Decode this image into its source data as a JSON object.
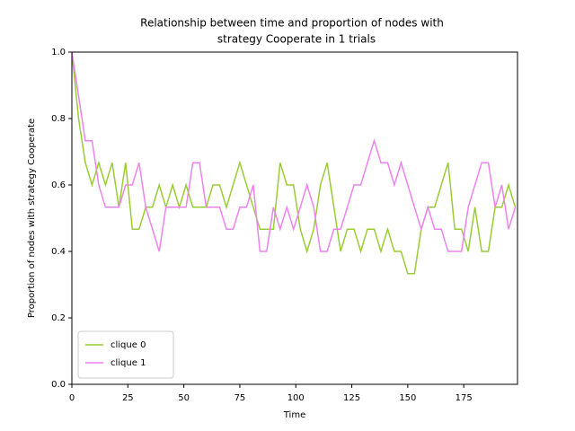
{
  "chart_data": {
    "type": "line",
    "title": [
      "Relationship between time and proportion of nodes with",
      "strategy Cooperate in 1 trials"
    ],
    "x_label": "Time",
    "y_label": "Proportion of nodes with strategy Cooperate",
    "x": [
      0,
      3,
      6,
      9,
      12,
      15,
      18,
      21,
      24,
      27,
      30,
      33,
      36,
      39,
      42,
      45,
      48,
      51,
      54,
      57,
      60,
      63,
      66,
      69,
      72,
      75,
      78,
      81,
      84,
      87,
      90,
      93,
      96,
      99,
      102,
      105,
      108,
      111,
      114,
      117,
      120,
      123,
      126,
      129,
      132,
      135,
      138,
      141,
      144,
      147,
      150,
      153,
      156,
      159,
      162,
      165,
      168,
      171,
      174,
      177,
      180,
      183,
      186,
      189,
      192,
      195,
      198
    ],
    "series": [
      {
        "name": "clique 0",
        "color": "#9acd32",
        "values": [
          1.0,
          0.8,
          0.667,
          0.6,
          0.667,
          0.6,
          0.667,
          0.533,
          0.667,
          0.467,
          0.467,
          0.533,
          0.533,
          0.6,
          0.533,
          0.6,
          0.533,
          0.6,
          0.533,
          0.533,
          0.533,
          0.6,
          0.6,
          0.533,
          0.6,
          0.667,
          0.6,
          0.533,
          0.467,
          0.467,
          0.467,
          0.667,
          0.6,
          0.6,
          0.467,
          0.4,
          0.467,
          0.6,
          0.667,
          0.533,
          0.4,
          0.467,
          0.467,
          0.4,
          0.467,
          0.467,
          0.4,
          0.467,
          0.4,
          0.4,
          0.333,
          0.333,
          0.467,
          0.533,
          0.533,
          0.6,
          0.667,
          0.467,
          0.467,
          0.4,
          0.533,
          0.4,
          0.4,
          0.533,
          0.533,
          0.6,
          0.533
        ]
      },
      {
        "name": "clique 1",
        "color": "#ee82ee",
        "values": [
          1.0,
          0.867,
          0.733,
          0.733,
          0.6,
          0.533,
          0.533,
          0.533,
          0.6,
          0.6,
          0.667,
          0.533,
          0.467,
          0.4,
          0.533,
          0.533,
          0.533,
          0.533,
          0.667,
          0.667,
          0.533,
          0.533,
          0.533,
          0.467,
          0.467,
          0.533,
          0.533,
          0.6,
          0.4,
          0.4,
          0.533,
          0.467,
          0.533,
          0.467,
          0.533,
          0.6,
          0.533,
          0.4,
          0.4,
          0.467,
          0.467,
          0.533,
          0.6,
          0.6,
          0.667,
          0.733,
          0.667,
          0.667,
          0.6,
          0.667,
          0.6,
          0.533,
          0.467,
          0.533,
          0.467,
          0.467,
          0.4,
          0.4,
          0.4,
          0.533,
          0.6,
          0.667,
          0.667,
          0.533,
          0.6,
          0.467,
          0.533
        ]
      }
    ],
    "xlim": [
      0,
      199
    ],
    "xticks": [
      0,
      25,
      50,
      75,
      100,
      125,
      150,
      175
    ],
    "ylim": [
      0,
      1
    ],
    "yticks": [
      {
        "value": 0,
        "label": "0.0"
      },
      0.2,
      0.4,
      0.6,
      0.8,
      {
        "value": 1,
        "label": "1.0"
      }
    ],
    "legend": "lower left",
    "grid": false
  }
}
